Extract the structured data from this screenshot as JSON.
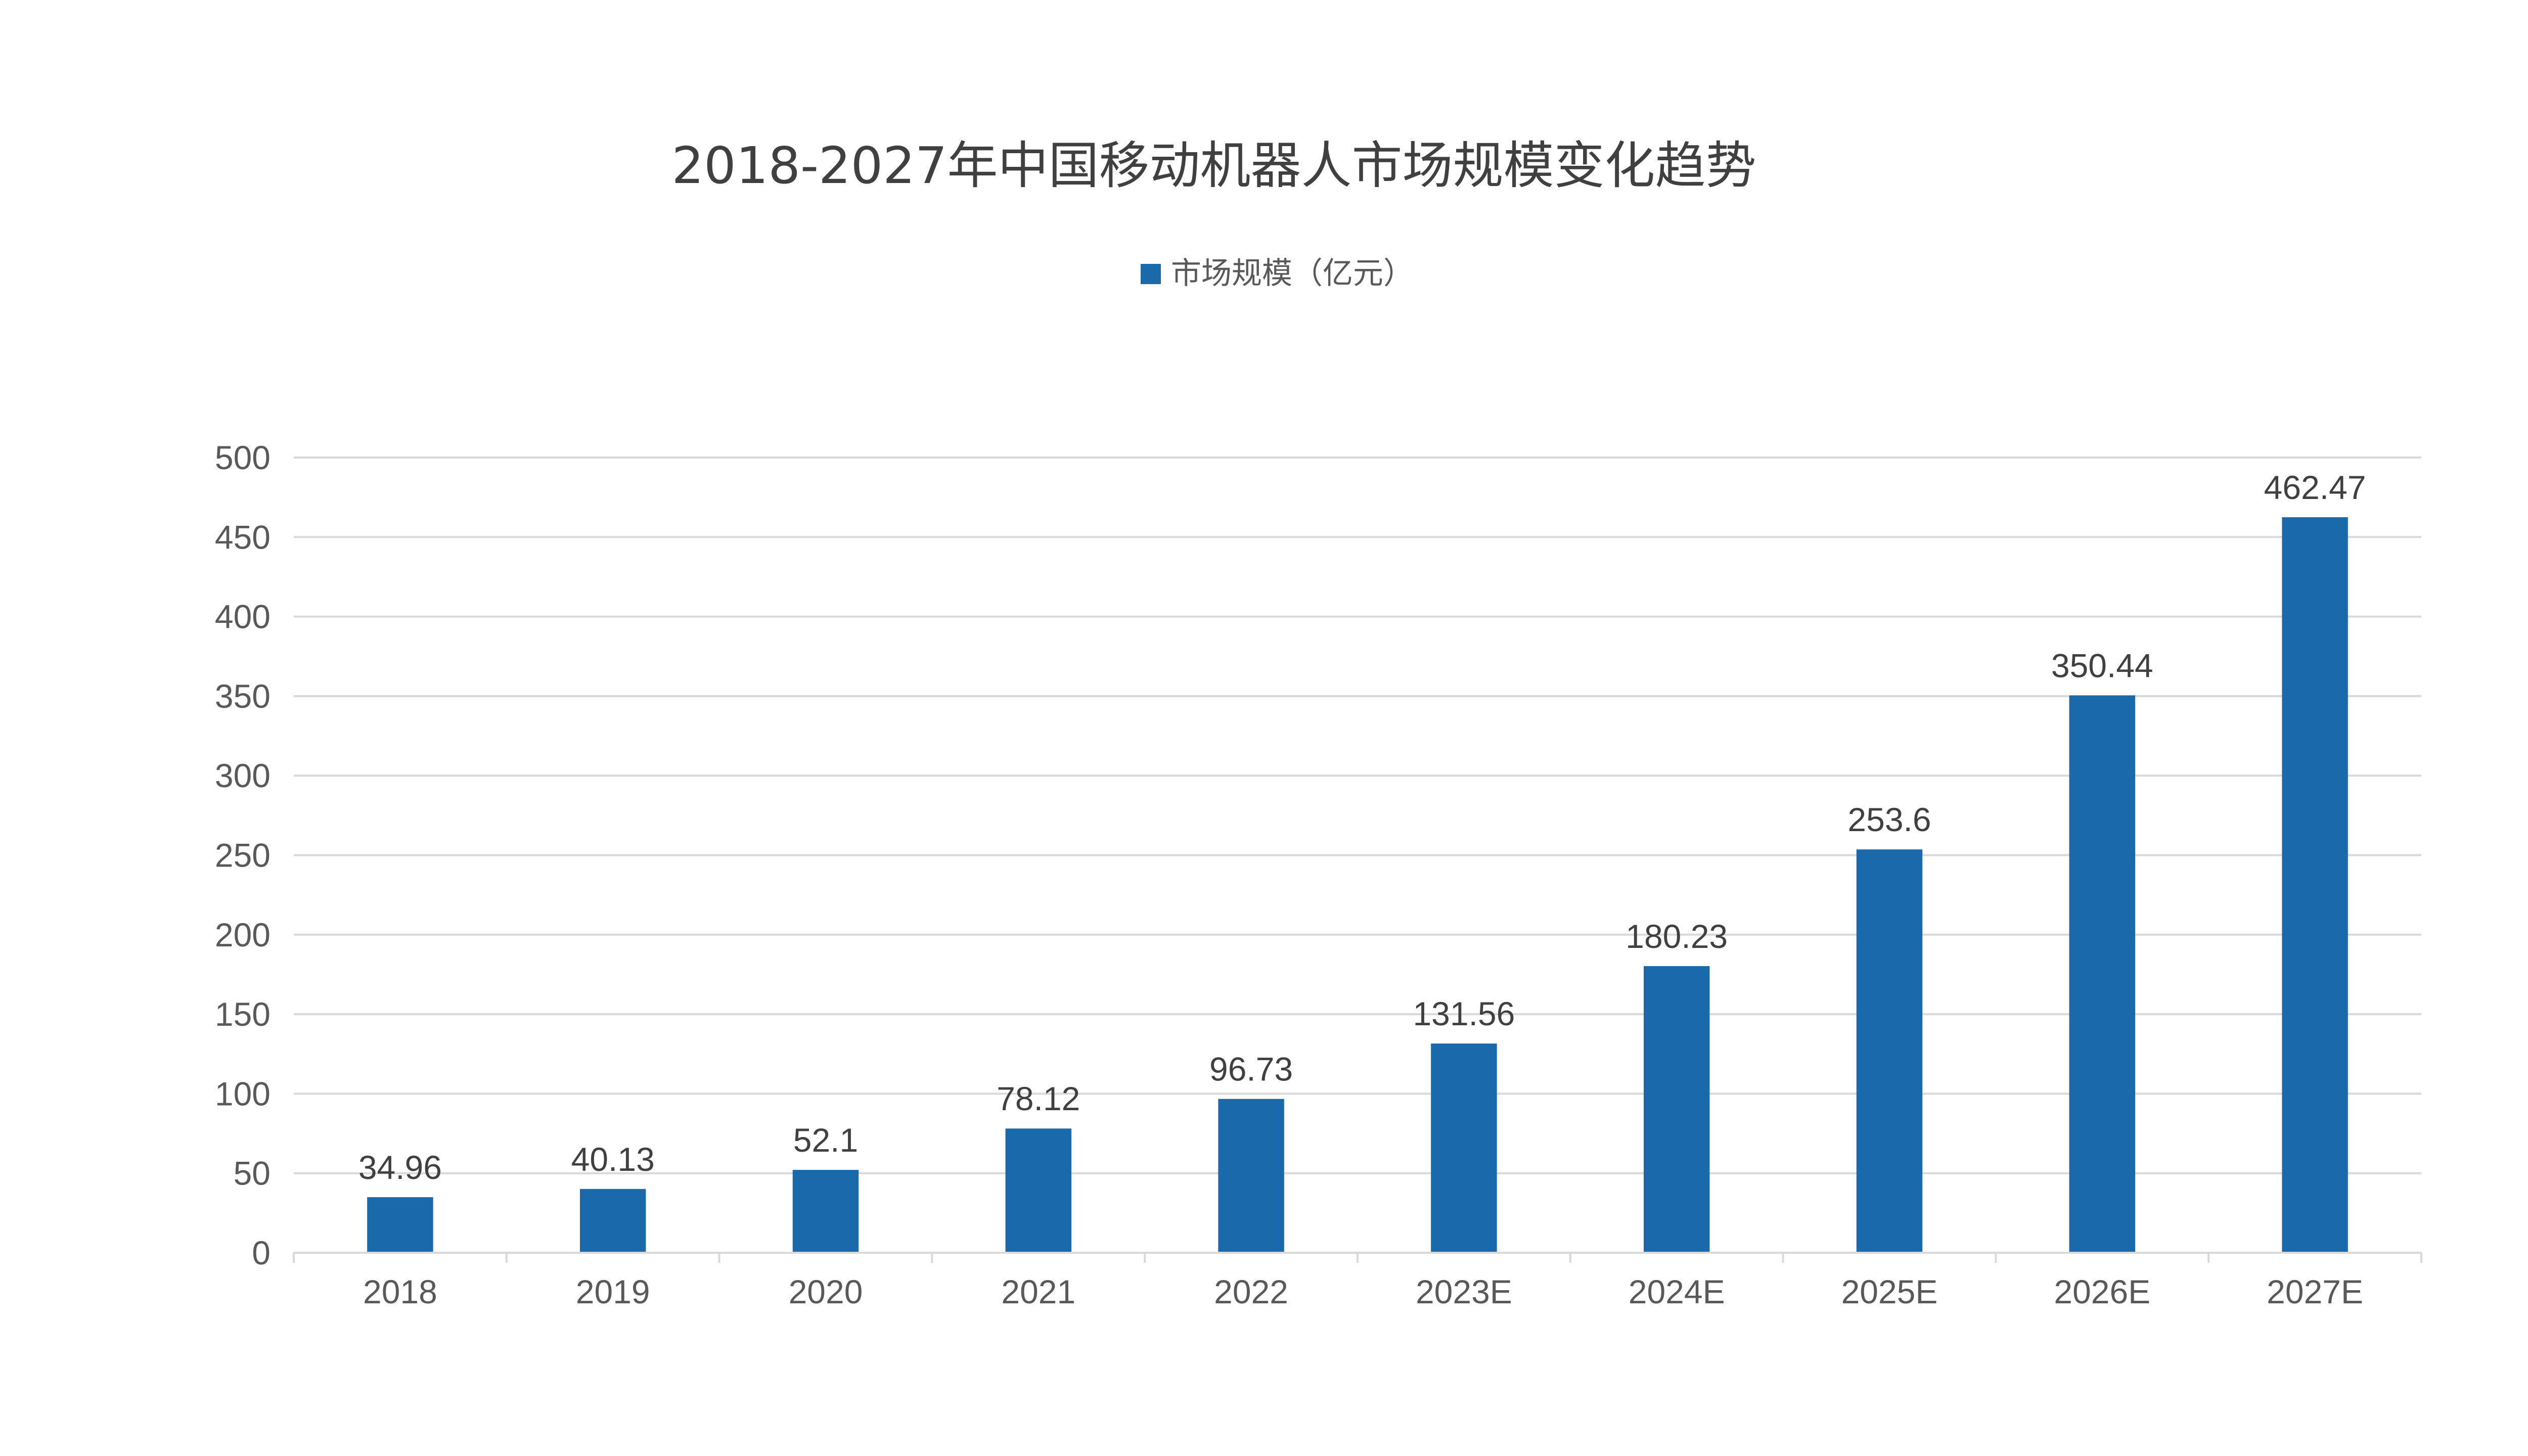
{
  "chart_data": {
    "type": "bar",
    "title": "2018-2027年中国移动机器人市场规模变化趋势",
    "categories": [
      "2018",
      "2019",
      "2020",
      "2021",
      "2022",
      "2023E",
      "2024E",
      "2025E",
      "2026E",
      "2027E"
    ],
    "series": [
      {
        "name": "市场规模（亿元）",
        "values": [
          34.96,
          40.13,
          52.1,
          78.12,
          96.73,
          131.56,
          180.23,
          253.6,
          350.44,
          462.47
        ],
        "labels": [
          "34.96",
          "40.13",
          "52.1",
          "78.12",
          "96.73",
          "131.56",
          "180.23",
          "253.6",
          "350.44",
          "462.47"
        ],
        "color": "#1a6aab"
      }
    ],
    "ylim": [
      0,
      500
    ],
    "yticks": [
      "0",
      "50",
      "100",
      "150",
      "200",
      "250",
      "300",
      "350",
      "400",
      "450",
      "500"
    ],
    "xlabel": "",
    "ylabel": "",
    "grid": true,
    "legend_position": "top-center"
  }
}
